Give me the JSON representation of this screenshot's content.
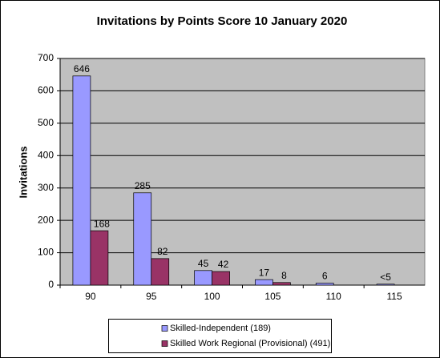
{
  "chart_data": {
    "type": "bar",
    "title": "Invitations by Points Score 10 January 2020",
    "y_label": "Invitations",
    "categories": [
      "90",
      "95",
      "100",
      "105",
      "110",
      "115"
    ],
    "series": [
      {
        "name": "Skilled-Independent (189)",
        "color": "#9999ff",
        "values": [
          646,
          285,
          45,
          17,
          6,
          3
        ],
        "value_labels": [
          "646",
          "285",
          "45",
          "17",
          "6",
          "<5"
        ]
      },
      {
        "name": "Skilled Work Regional (Provisional) (491)",
        "color": "#993366",
        "values": [
          168,
          82,
          42,
          8,
          null,
          null
        ]
      }
    ],
    "ylim": [
      0,
      700
    ],
    "yticks": [
      0,
      100,
      200,
      300,
      400,
      500,
      600,
      700
    ],
    "grid": true
  }
}
